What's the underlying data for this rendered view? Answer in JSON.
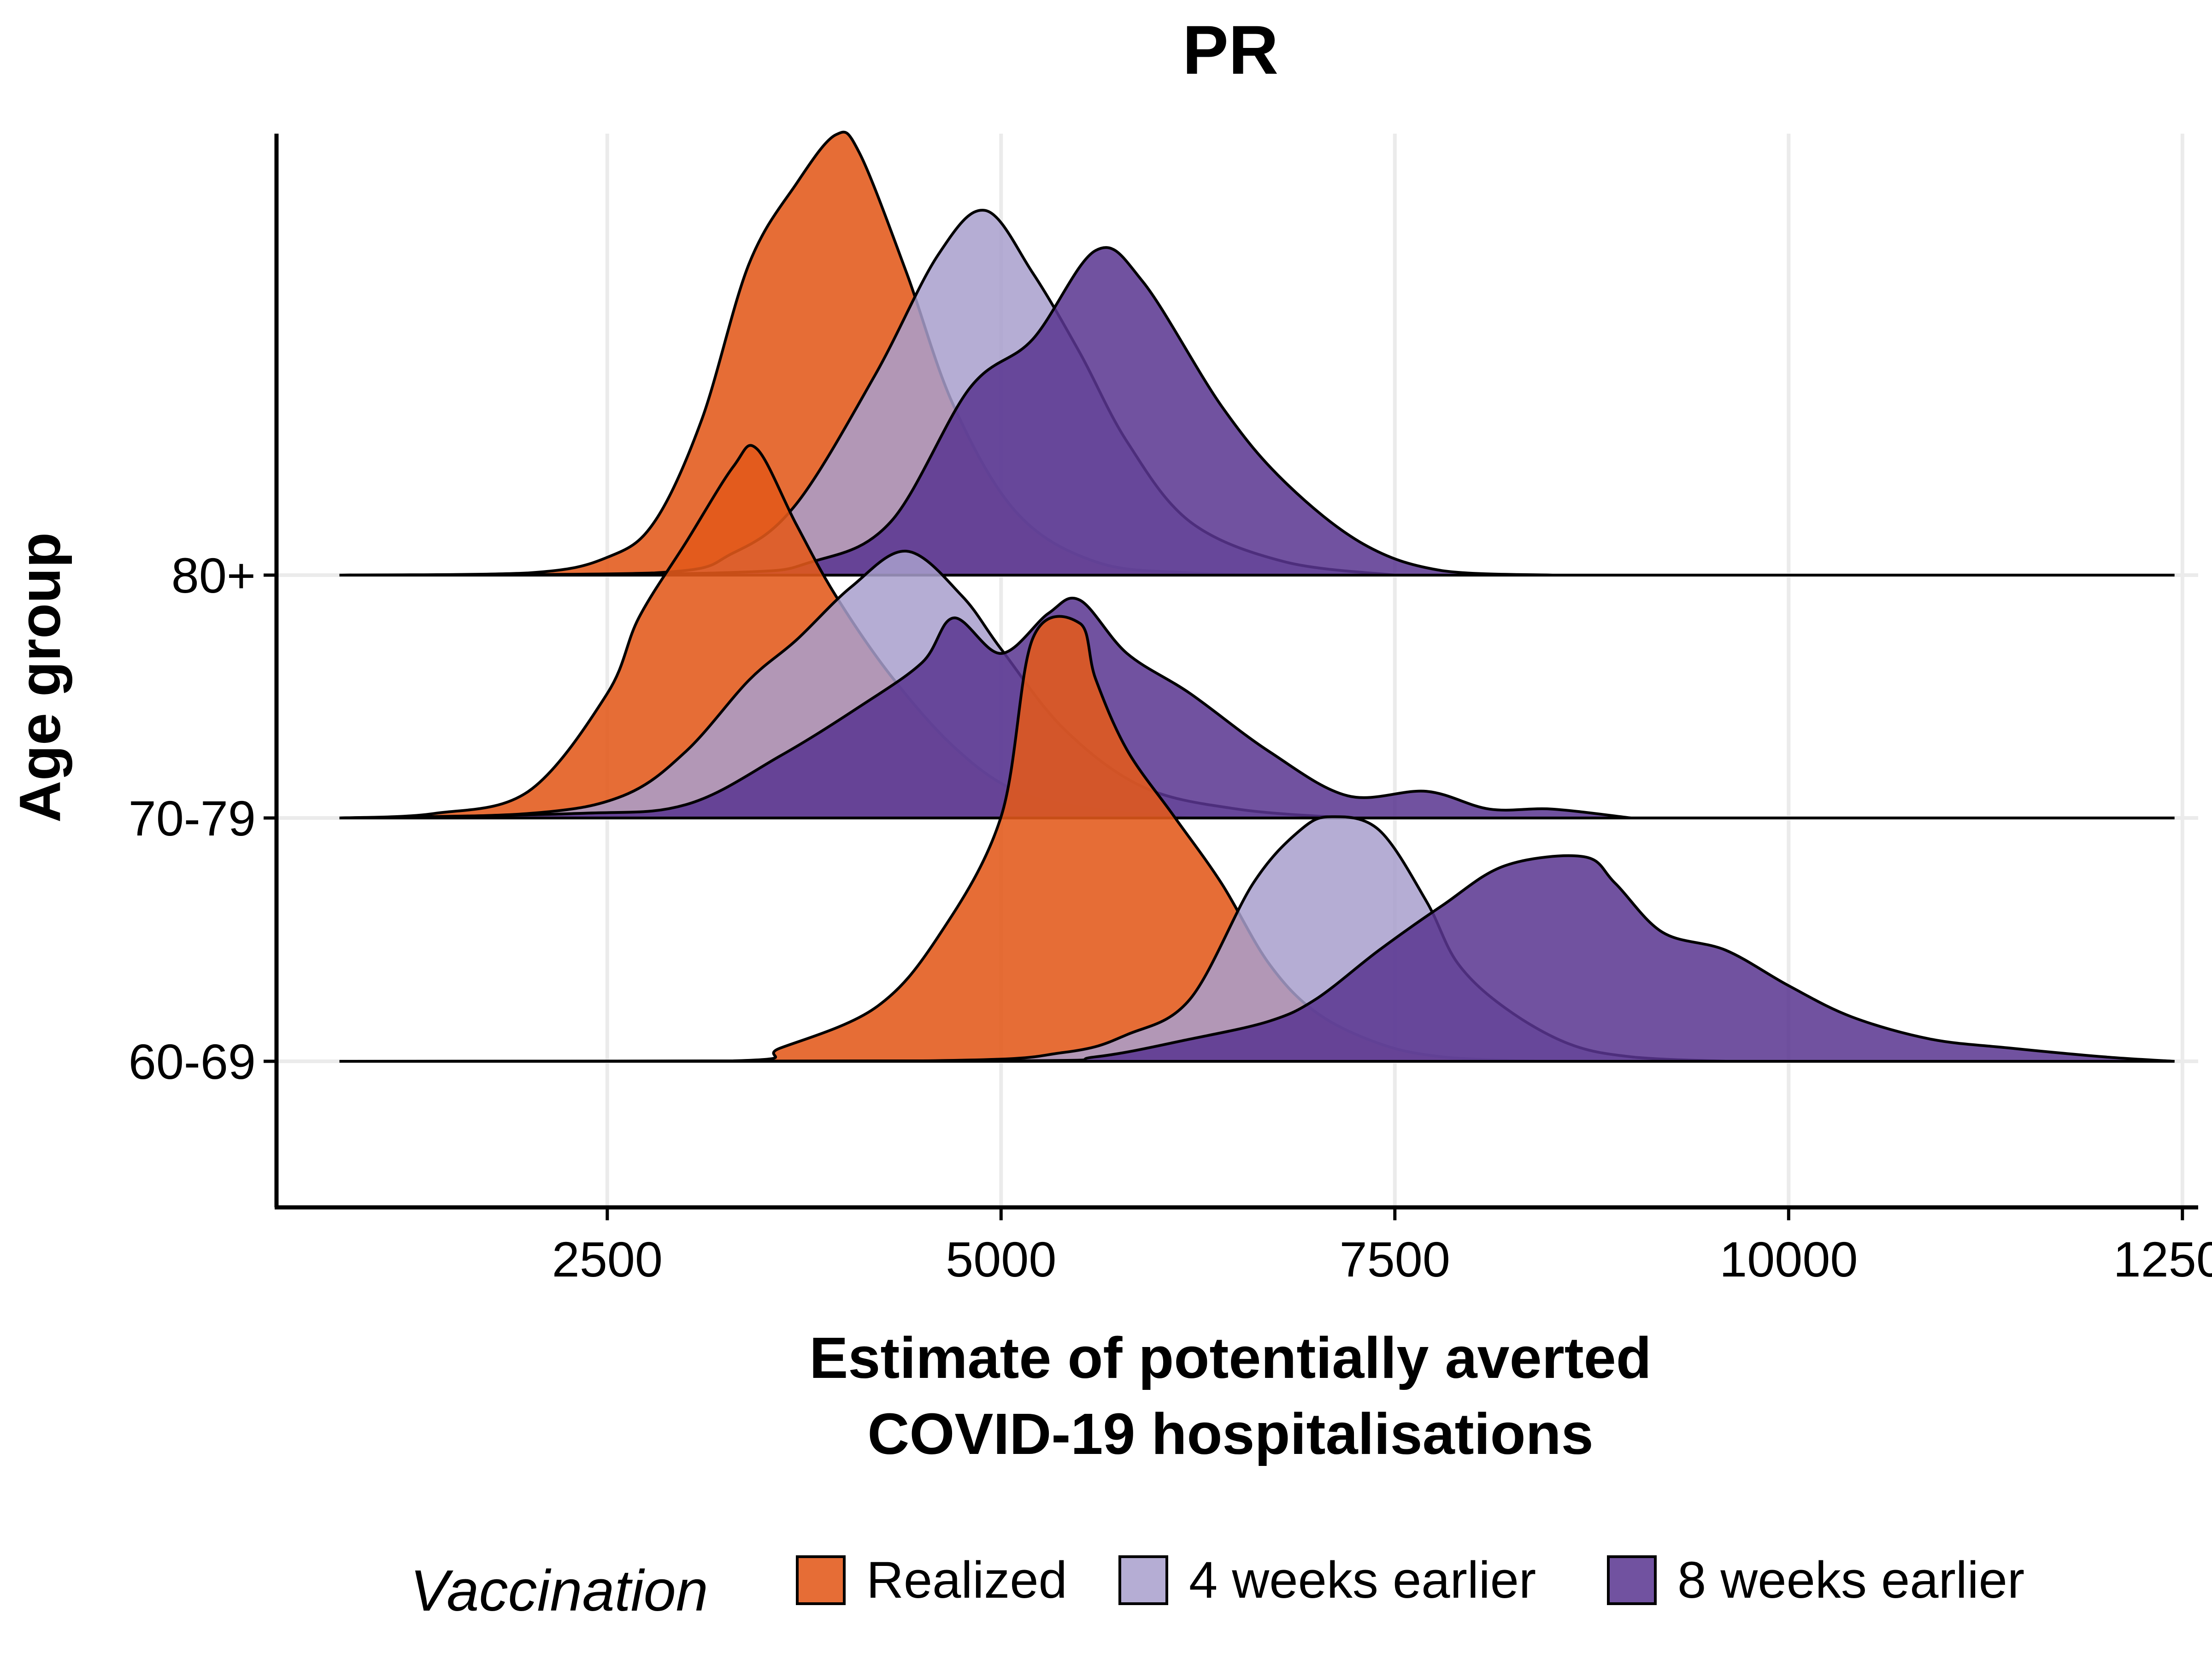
{
  "chart_data": {
    "type": "area",
    "subtype": "ridgeline-density",
    "title": "PR",
    "xlabel_lines": [
      "Estimate of potentially averted",
      "COVID-19 hospitalisations"
    ],
    "ylabel": "Age group",
    "xlim": [
      400,
      12600
    ],
    "x_ticks": [
      2500,
      5000,
      7500,
      10000,
      12500
    ],
    "x_tick_labels": [
      "2500",
      "5000",
      "7500",
      "10000",
      "12500"
    ],
    "categories": [
      "60-69",
      "70-79",
      "80+"
    ],
    "baseline_range": [
      800,
      12450
    ],
    "grid": true,
    "legend": {
      "title": "Vaccination",
      "position": "bottom",
      "entries": [
        "Realized",
        "4 weeks earlier",
        "8 weeks earlier"
      ]
    },
    "colors": {
      "Realized": "#e3591a",
      "4 weeks earlier": "#a89fcc",
      "8 weeks earlier": "#5a3590"
    },
    "groups": [
      {
        "category": "60-69",
        "series": [
          {
            "name": "Realized",
            "points": [
              [
                800,
                0
              ],
              [
                3300,
                0.001
              ],
              [
                3600,
                0.03
              ],
              [
                4200,
                0.12
              ],
              [
                4600,
                0.28
              ],
              [
                5000,
                0.55
              ],
              [
                5200,
                0.95
              ],
              [
                5500,
                0.985
              ],
              [
                5600,
                0.86
              ],
              [
                5800,
                0.7
              ],
              [
                6100,
                0.55
              ],
              [
                6400,
                0.4
              ],
              [
                6700,
                0.22
              ],
              [
                7000,
                0.11
              ],
              [
                7400,
                0.04
              ],
              [
                7800,
                0.01
              ],
              [
                8400,
                0
              ]
            ]
          },
          {
            "name": "4 weeks earlier",
            "points": [
              [
                800,
                0
              ],
              [
                4500,
                0.001
              ],
              [
                5400,
                0.02
              ],
              [
                5800,
                0.06
              ],
              [
                6200,
                0.14
              ],
              [
                6600,
                0.4
              ],
              [
                6900,
                0.52
              ],
              [
                7100,
                0.55
              ],
              [
                7400,
                0.52
              ],
              [
                7700,
                0.36
              ],
              [
                7900,
                0.22
              ],
              [
                8200,
                0.12
              ],
              [
                8600,
                0.04
              ],
              [
                9000,
                0.01
              ],
              [
                9600,
                0
              ]
            ]
          },
          {
            "name": "8 weeks earlier",
            "points": [
              [
                800,
                0
              ],
              [
                5000,
                0.001
              ],
              [
                5600,
                0.01
              ],
              [
                6200,
                0.05
              ],
              [
                6700,
                0.09
              ],
              [
                7000,
                0.14
              ],
              [
                7400,
                0.25
              ],
              [
                7800,
                0.35
              ],
              [
                8200,
                0.44
              ],
              [
                8700,
                0.46
              ],
              [
                8900,
                0.4
              ],
              [
                9200,
                0.29
              ],
              [
                9600,
                0.25
              ],
              [
                10000,
                0.17
              ],
              [
                10400,
                0.1
              ],
              [
                10900,
                0.05
              ],
              [
                11400,
                0.03
              ],
              [
                12000,
                0.01
              ],
              [
                12450,
                0
              ]
            ]
          }
        ]
      },
      {
        "category": "70-79",
        "series": [
          {
            "name": "Realized",
            "points": [
              [
                800,
                0
              ],
              [
                1400,
                0.01
              ],
              [
                2000,
                0.06
              ],
              [
                2500,
                0.28
              ],
              [
                2700,
                0.45
              ],
              [
                3000,
                0.62
              ],
              [
                3300,
                0.79
              ],
              [
                3450,
                0.83
              ],
              [
                3700,
                0.66
              ],
              [
                3950,
                0.5
              ],
              [
                4300,
                0.32
              ],
              [
                4700,
                0.16
              ],
              [
                5100,
                0.06
              ],
              [
                5600,
                0.02
              ],
              [
                6200,
                0
              ]
            ]
          },
          {
            "name": "4 weeks earlier",
            "points": [
              [
                800,
                0
              ],
              [
                2000,
                0.01
              ],
              [
                2600,
                0.05
              ],
              [
                3000,
                0.15
              ],
              [
                3400,
                0.31
              ],
              [
                3700,
                0.4
              ],
              [
                4050,
                0.52
              ],
              [
                4400,
                0.6
              ],
              [
                4750,
                0.5
              ],
              [
                5000,
                0.38
              ],
              [
                5400,
                0.2
              ],
              [
                5900,
                0.07
              ],
              [
                6500,
                0.02
              ],
              [
                7200,
                0
              ]
            ]
          },
          {
            "name": "8 weeks earlier",
            "points": [
              [
                800,
                0
              ],
              [
                2300,
                0.01
              ],
              [
                3000,
                0.03
              ],
              [
                3600,
                0.14
              ],
              [
                4100,
                0.25
              ],
              [
                4500,
                0.35
              ],
              [
                4700,
                0.45
              ],
              [
                5000,
                0.37
              ],
              [
                5300,
                0.46
              ],
              [
                5500,
                0.49
              ],
              [
                5800,
                0.37
              ],
              [
                6200,
                0.28
              ],
              [
                6700,
                0.15
              ],
              [
                7200,
                0.05
              ],
              [
                7700,
                0.06
              ],
              [
                8100,
                0.02
              ],
              [
                8500,
                0.02
              ],
              [
                9000,
                0
              ]
            ]
          }
        ]
      },
      {
        "category": "80+",
        "series": [
          {
            "name": "Realized",
            "points": [
              [
                800,
                0
              ],
              [
                2000,
                0.005
              ],
              [
                2500,
                0.04
              ],
              [
                2800,
                0.12
              ],
              [
                3100,
                0.35
              ],
              [
                3400,
                0.7
              ],
              [
                3700,
                0.88
              ],
              [
                3950,
                0.99
              ],
              [
                4100,
                0.95
              ],
              [
                4400,
                0.68
              ],
              [
                4700,
                0.38
              ],
              [
                5100,
                0.14
              ],
              [
                5600,
                0.03
              ],
              [
                6200,
                0.005
              ],
              [
                7000,
                0
              ]
            ]
          },
          {
            "name": "4 weeks earlier",
            "points": [
              [
                800,
                0
              ],
              [
                2800,
                0.005
              ],
              [
                3300,
                0.05
              ],
              [
                3700,
                0.16
              ],
              [
                4200,
                0.45
              ],
              [
                4600,
                0.72
              ],
              [
                4900,
                0.82
              ],
              [
                5200,
                0.68
              ],
              [
                5500,
                0.5
              ],
              [
                5800,
                0.3
              ],
              [
                6200,
                0.12
              ],
              [
                6800,
                0.03
              ],
              [
                7500,
                0
              ]
            ]
          },
          {
            "name": "8 weeks earlier",
            "points": [
              [
                800,
                0
              ],
              [
                3200,
                0.005
              ],
              [
                3800,
                0.03
              ],
              [
                4300,
                0.12
              ],
              [
                4800,
                0.42
              ],
              [
                5200,
                0.53
              ],
              [
                5600,
                0.73
              ],
              [
                5900,
                0.66
              ],
              [
                6400,
                0.38
              ],
              [
                6800,
                0.21
              ],
              [
                7300,
                0.07
              ],
              [
                7800,
                0.01
              ],
              [
                8500,
                0
              ]
            ]
          }
        ]
      }
    ]
  }
}
